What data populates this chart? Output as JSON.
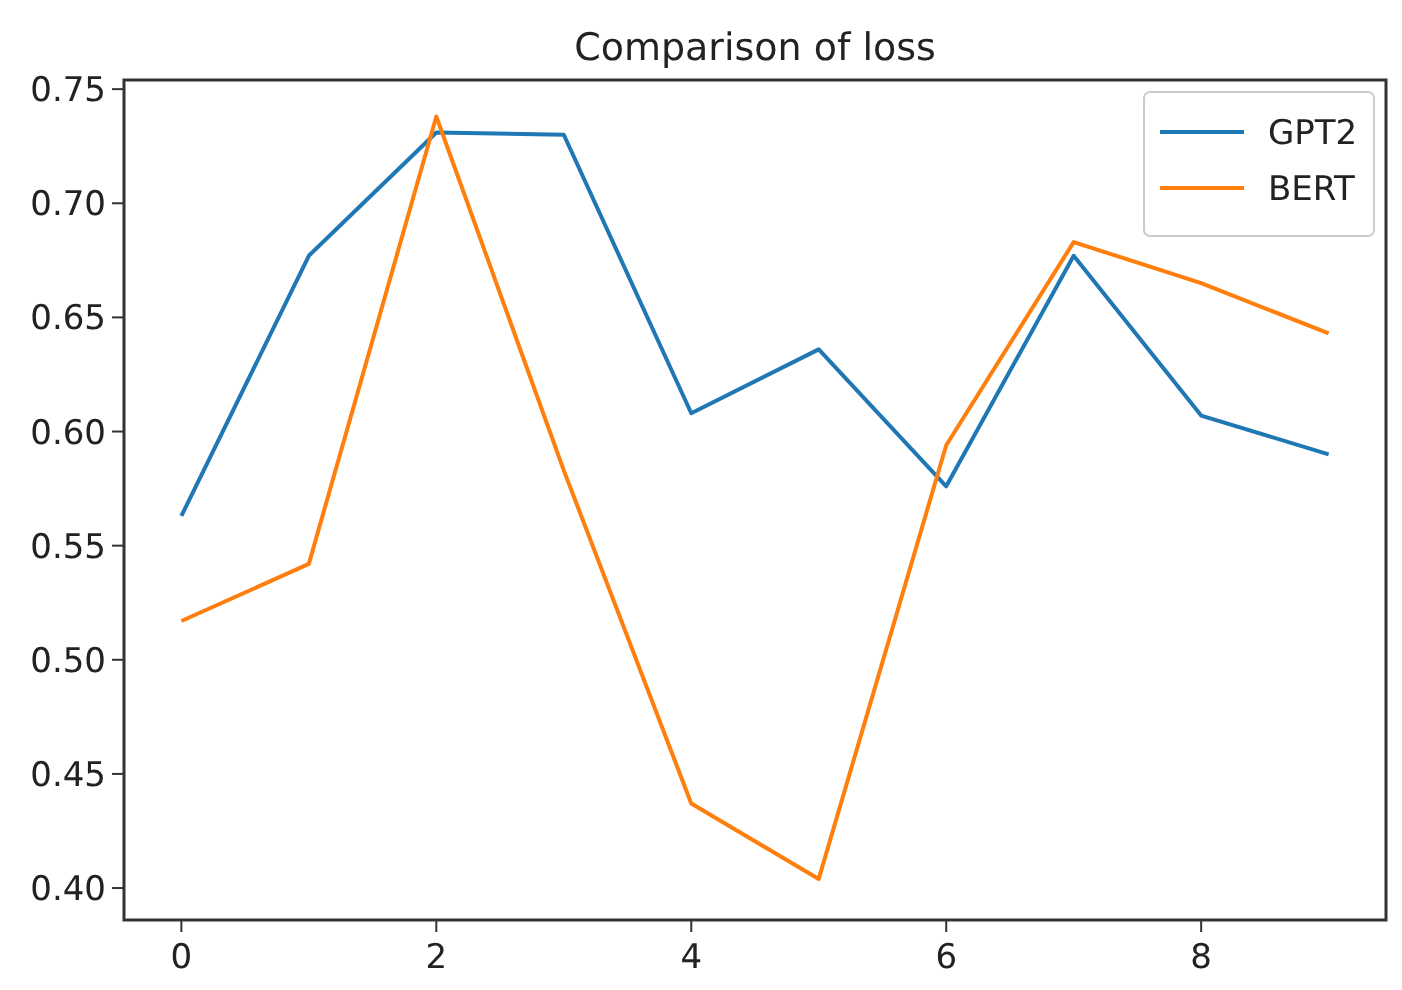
{
  "chart_data": {
    "type": "line",
    "title": "Comparison of loss",
    "x": [
      0,
      1,
      2,
      3,
      4,
      5,
      6,
      7,
      8,
      9
    ],
    "series": [
      {
        "name": "GPT2",
        "color": "#1f77b4",
        "values": [
          0.563,
          0.677,
          0.731,
          0.73,
          0.608,
          0.636,
          0.576,
          0.677,
          0.607,
          0.59
        ]
      },
      {
        "name": "BERT",
        "color": "#ff7f0e",
        "values": [
          0.517,
          0.542,
          0.738,
          0.583,
          0.437,
          0.404,
          0.594,
          0.683,
          0.665,
          0.643
        ]
      }
    ],
    "xlim": [
      -0.45,
      9.45
    ],
    "xticks": [
      0,
      2,
      4,
      6,
      8
    ],
    "ylim": [
      0.386,
      0.754
    ],
    "yticks": [
      {
        "value": 0.4,
        "label": "0.40"
      },
      {
        "value": 0.45,
        "label": "0.45"
      },
      {
        "value": 0.5,
        "label": "0.50"
      },
      {
        "value": 0.55,
        "label": "0.55"
      },
      {
        "value": 0.6,
        "label": "0.60"
      },
      {
        "value": 0.65,
        "label": "0.65"
      },
      {
        "value": 0.7,
        "label": "0.70"
      },
      {
        "value": 0.75,
        "label": "0.75"
      }
    ],
    "grid": false,
    "legend": "top right",
    "line_style": "solid"
  }
}
